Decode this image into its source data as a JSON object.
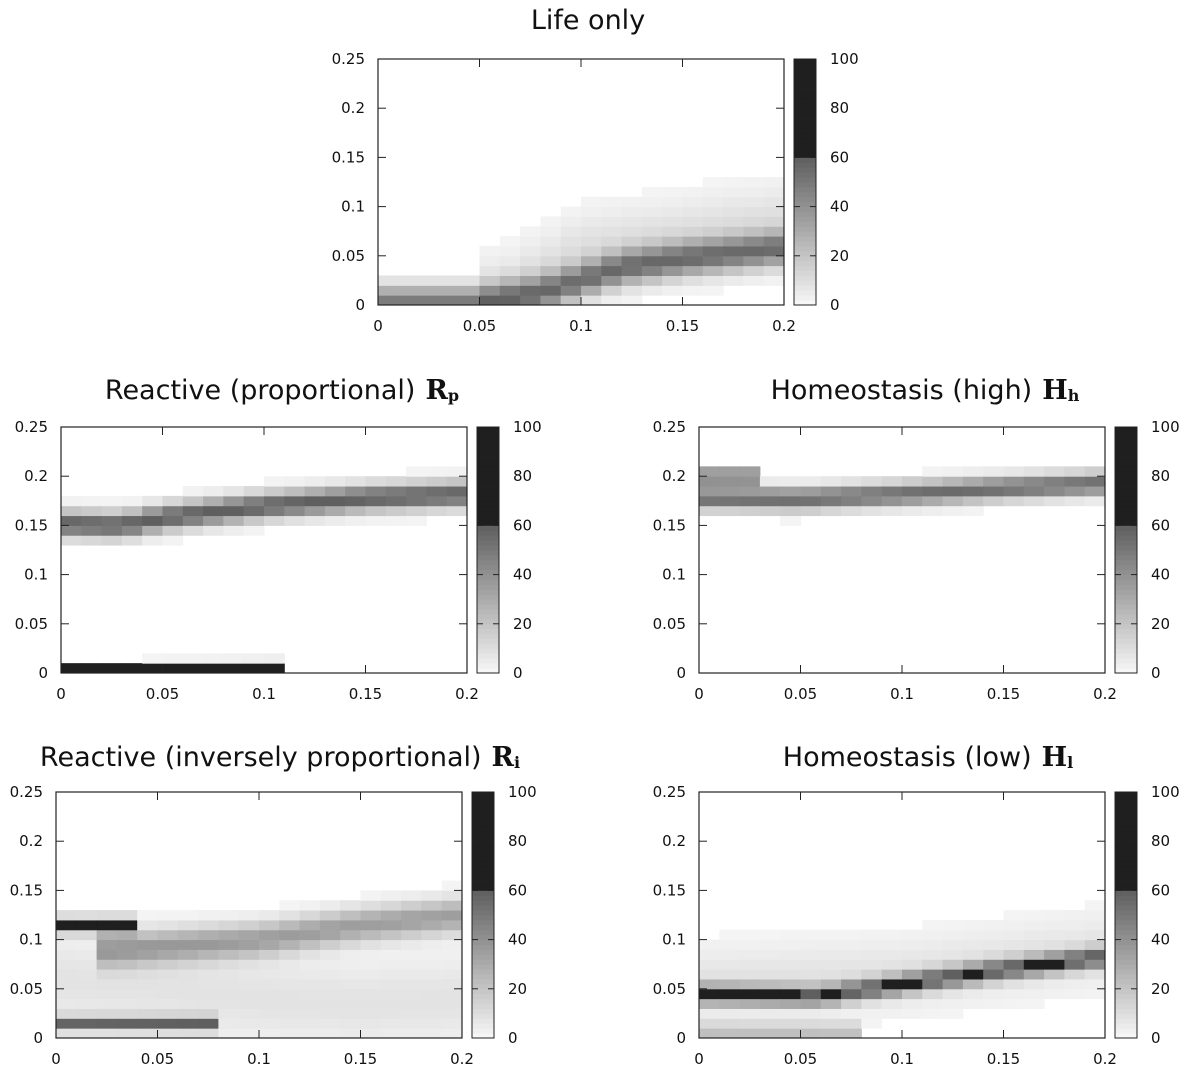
{
  "chart_data": [
    {
      "type": "heatmap",
      "title": "Life only",
      "title_symbol": "",
      "title_symbol_sub": "",
      "xlabel": "",
      "ylabel": "",
      "xlim": [
        0,
        0.2
      ],
      "ylim": [
        0,
        0.25
      ],
      "x_ticks": [
        "0",
        "0.05",
        "0.1",
        "0.15",
        "0.2"
      ],
      "y_ticks": [
        "0",
        "0.05",
        "0.1",
        "0.15",
        "0.2",
        "0.25"
      ],
      "colorbar": {
        "min": 0,
        "max": 100,
        "ticks": [
          "0",
          "20",
          "40",
          "60",
          "80",
          "100"
        ]
      },
      "grid": false,
      "bands": [
        {
          "points": [
            [
              0,
              0.002
            ],
            [
              0.05,
              0.002
            ],
            [
              0.08,
              0.012
            ],
            [
              0.1,
              0.025
            ],
            [
              0.12,
              0.038
            ],
            [
              0.15,
              0.047
            ],
            [
              0.2,
              0.058
            ]
          ],
          "peak": 50,
          "width": 0.012
        },
        {
          "points": [
            [
              0.06,
              0.01
            ],
            [
              0.1,
              0.055
            ],
            [
              0.15,
              0.07
            ],
            [
              0.2,
              0.085
            ]
          ],
          "peak": 10,
          "width": 0.025
        }
      ]
    },
    {
      "type": "heatmap",
      "title": "Reactive (proportional)",
      "title_symbol": "R",
      "title_symbol_sub": "p",
      "xlabel": "",
      "ylabel": "",
      "xlim": [
        0,
        0.2
      ],
      "ylim": [
        0,
        0.25
      ],
      "x_ticks": [
        "0",
        "0.05",
        "0.1",
        "0.15",
        "0.2"
      ],
      "y_ticks": [
        "0",
        "0.05",
        "0.1",
        "0.15",
        "0.2",
        "0.25"
      ],
      "colorbar": {
        "min": 0,
        "max": 100,
        "ticks": [
          "0",
          "20",
          "40",
          "60",
          "80",
          "100"
        ]
      },
      "grid": false,
      "bands": [
        {
          "points": [
            [
              0,
              0.152
            ],
            [
              0.03,
              0.15
            ],
            [
              0.05,
              0.158
            ],
            [
              0.1,
              0.17
            ],
            [
              0.15,
              0.178
            ],
            [
              0.2,
              0.182
            ]
          ],
          "peak": 60,
          "width": 0.009
        },
        {
          "points": [
            [
              0,
              0.003
            ],
            [
              0.03,
              0.003
            ],
            [
              0.06,
              0.004
            ],
            [
              0.1,
              0.005
            ]
          ],
          "peak": 75,
          "width": 0.004
        }
      ]
    },
    {
      "type": "heatmap",
      "title": "Homeostasis (high)",
      "title_symbol": "H",
      "title_symbol_sub": "h",
      "xlabel": "",
      "ylabel": "",
      "xlim": [
        0,
        0.2
      ],
      "ylim": [
        0,
        0.25
      ],
      "x_ticks": [
        "0",
        "0.05",
        "0.1",
        "0.15",
        "0.2"
      ],
      "y_ticks": [
        "0",
        "0.05",
        "0.1",
        "0.15",
        "0.2",
        "0.25"
      ],
      "colorbar": {
        "min": 0,
        "max": 100,
        "ticks": [
          "0",
          "20",
          "40",
          "60",
          "80",
          "100"
        ]
      },
      "grid": false,
      "bands": [
        {
          "points": [
            [
              0,
              0.2
            ],
            [
              0.02,
              0.2
            ]
          ],
          "peak": 75,
          "width": 0.004
        },
        {
          "points": [
            [
              0.01,
              0.178
            ],
            [
              0.05,
              0.177
            ],
            [
              0.1,
              0.182
            ],
            [
              0.15,
              0.188
            ],
            [
              0.2,
              0.193
            ]
          ],
          "peak": 55,
          "width": 0.008
        }
      ]
    },
    {
      "type": "heatmap",
      "title": "Reactive (inversely proportional)",
      "title_symbol": "R",
      "title_symbol_sub": "i",
      "xlabel": "",
      "ylabel": "",
      "xlim": [
        0,
        0.2
      ],
      "ylim": [
        0,
        0.25
      ],
      "x_ticks": [
        "0",
        "0.05",
        "0.1",
        "0.15",
        "0.2"
      ],
      "y_ticks": [
        "0",
        "0.05",
        "0.1",
        "0.15",
        "0.2",
        "0.25"
      ],
      "colorbar": {
        "min": 0,
        "max": 100,
        "ticks": [
          "0",
          "20",
          "40",
          "60",
          "80",
          "100"
        ]
      },
      "grid": false,
      "bands": [
        {
          "points": [
            [
              0,
              0.115
            ],
            [
              0.03,
              0.115
            ]
          ],
          "peak": 70,
          "width": 0.005
        },
        {
          "points": [
            [
              0.01,
              0.015
            ],
            [
              0.07,
              0.015
            ]
          ],
          "peak": 55,
          "width": 0.005
        },
        {
          "points": [
            [
              0.03,
              0.09
            ],
            [
              0.1,
              0.1
            ],
            [
              0.15,
              0.115
            ],
            [
              0.2,
              0.125
            ]
          ],
          "peak": 35,
          "width": 0.012
        },
        {
          "points": [
            [
              0,
              0.06
            ],
            [
              0.06,
              0.05
            ],
            [
              0.1,
              0.04
            ],
            [
              0.15,
              0.035
            ],
            [
              0.2,
              0.04
            ]
          ],
          "peak": 8,
          "width": 0.03
        }
      ]
    },
    {
      "type": "heatmap",
      "title": "Homeostasis (low)",
      "title_symbol": "H",
      "title_symbol_sub": "l",
      "xlabel": "",
      "ylabel": "",
      "xlim": [
        0,
        0.2
      ],
      "ylim": [
        0,
        0.25
      ],
      "x_ticks": [
        "0",
        "0.05",
        "0.1",
        "0.15",
        "0.2"
      ],
      "y_ticks": [
        "0",
        "0.05",
        "0.1",
        "0.15",
        "0.2",
        "0.25"
      ],
      "colorbar": {
        "min": 0,
        "max": 100,
        "ticks": [
          "0",
          "20",
          "40",
          "60",
          "80",
          "100"
        ]
      },
      "grid": false,
      "bands": [
        {
          "points": [
            [
              0,
              0.045
            ],
            [
              0.03,
              0.044
            ],
            [
              0.06,
              0.043
            ],
            [
              0.1,
              0.055
            ],
            [
              0.15,
              0.07
            ],
            [
              0.2,
              0.083
            ]
          ],
          "peak": 55,
          "width": 0.007
        },
        {
          "points": [
            [
              0.01,
              0.008
            ],
            [
              0.07,
              0.008
            ]
          ],
          "peak": 25,
          "width": 0.005
        },
        {
          "points": [
            [
              0,
              0.055
            ],
            [
              0.1,
              0.065
            ],
            [
              0.2,
              0.09
            ]
          ],
          "peak": 8,
          "width": 0.025
        }
      ]
    }
  ]
}
